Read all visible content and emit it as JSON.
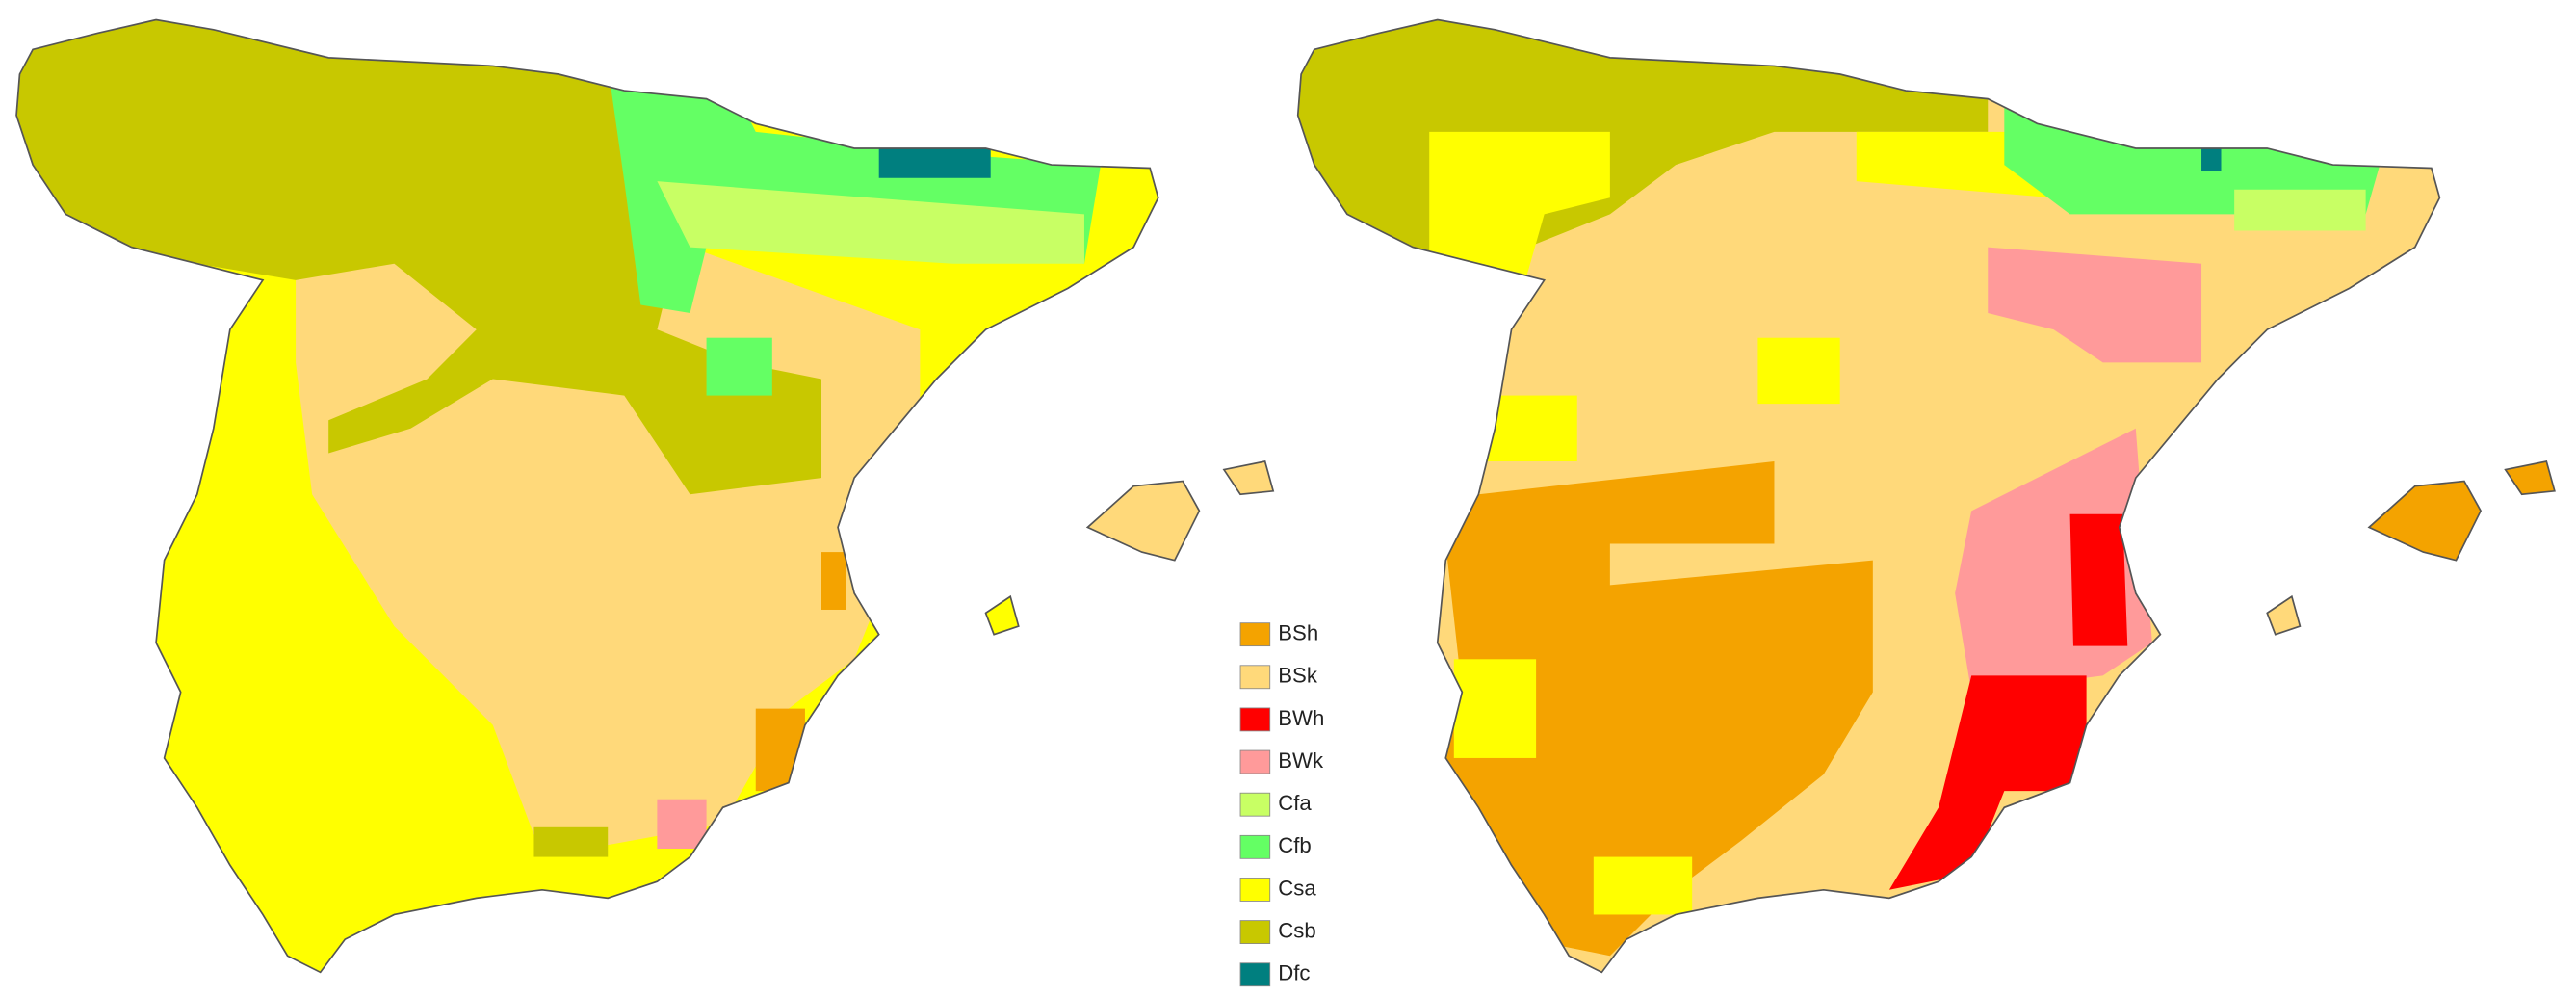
{
  "legend": {
    "items": [
      {
        "label": "BSh",
        "color": "#f4a300"
      },
      {
        "label": "BSk",
        "color": "#ffd97a"
      },
      {
        "label": "BWh",
        "color": "#ff0000"
      },
      {
        "label": "BWk",
        "color": "#ff9a9a"
      },
      {
        "label": "Cfa",
        "color": "#c8ff64"
      },
      {
        "label": "Cfb",
        "color": "#64ff64"
      },
      {
        "label": "Csa",
        "color": "#ffff00"
      },
      {
        "label": "Csb",
        "color": "#c8c800"
      },
      {
        "label": "Dfc",
        "color": "#007f7f"
      }
    ]
  }
}
